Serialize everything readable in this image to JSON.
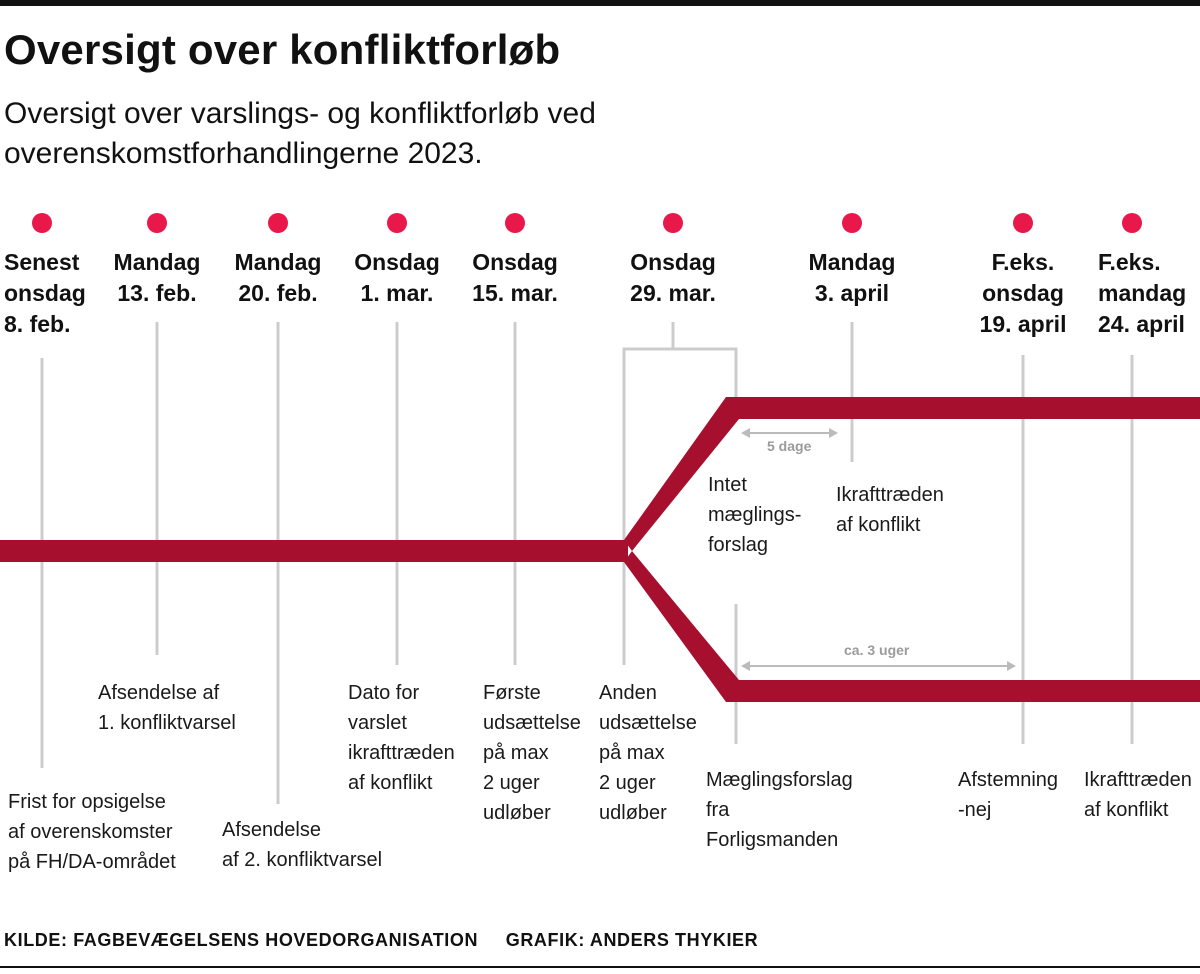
{
  "header": {
    "title": "Oversigt over konfliktforløb",
    "subtitle": "Oversigt over varslings- og konfliktforløb ved overenskomstforhandlingerne 2023."
  },
  "chart_data": {
    "type": "timeline",
    "colors": {
      "track": "#A6102E",
      "dot": "#E8194A",
      "line": "#CCCCCC",
      "arrow": "#BBBBBB"
    },
    "dates": [
      {
        "lines": [
          "Senest",
          "onsdag",
          "8. feb."
        ]
      },
      {
        "lines": [
          "Mandag",
          "13. feb."
        ]
      },
      {
        "lines": [
          "Mandag",
          "20. feb."
        ]
      },
      {
        "lines": [
          "Onsdag",
          "1. mar."
        ]
      },
      {
        "lines": [
          "Onsdag",
          "15. mar."
        ]
      },
      {
        "lines": [
          "Onsdag",
          "29. mar."
        ]
      },
      {
        "lines": [
          "Mandag",
          "3. april"
        ]
      },
      {
        "lines": [
          "F.eks.",
          "onsdag",
          "19. april"
        ]
      },
      {
        "lines": [
          "F.eks.",
          "mandag",
          "24. april"
        ]
      }
    ],
    "events": [
      {
        "lines": [
          "Frist for opsigelse",
          "af overenskomster",
          "på FH/DA-området"
        ]
      },
      {
        "lines": [
          "Afsendelse af",
          "1. konfliktvarsel"
        ]
      },
      {
        "lines": [
          "Afsendelse",
          "af 2. konfliktvarsel"
        ]
      },
      {
        "lines": [
          "Dato for",
          "varslet",
          "ikrafttræden",
          "af konflikt"
        ]
      },
      {
        "lines": [
          "Første",
          "udsættelse",
          "på max",
          "2 uger",
          "udløber"
        ]
      },
      {
        "lines": [
          "Anden",
          "udsættelse",
          "på max",
          "2 uger",
          "udløber"
        ]
      },
      {
        "lines": [
          "Intet",
          "mæglings-",
          "forslag"
        ]
      },
      {
        "lines": [
          "Ikrafttræden",
          "af konflikt"
        ]
      },
      {
        "lines": [
          "Mæglingsforslag",
          "fra",
          "Forligsmanden"
        ]
      },
      {
        "lines": [
          "Afstemning",
          "-nej"
        ]
      },
      {
        "lines": [
          "Ikrafttræden",
          "af konflikt"
        ]
      }
    ],
    "durations": [
      {
        "label": "5 dage"
      },
      {
        "label": "ca. 3 uger"
      }
    ]
  },
  "footer": {
    "source": "KILDE: FAGBEVÆGELSENS HOVEDORGANISATION",
    "credit": "GRAFIK: ANDERS THYKIER"
  }
}
